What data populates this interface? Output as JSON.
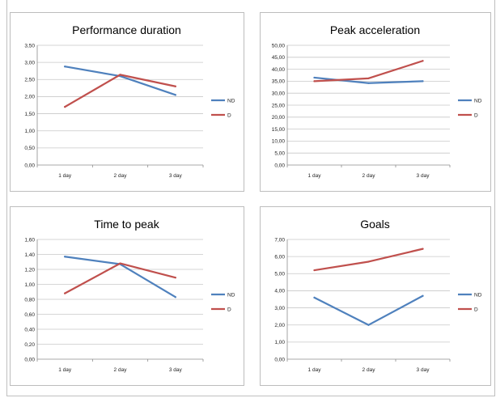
{
  "chart_data": [
    {
      "type": "line",
      "title": "Performance duration",
      "categories": [
        "1 day",
        "2 day",
        "3 day"
      ],
      "y_ticks": [
        "0,00",
        "0,50",
        "1,00",
        "1,50",
        "2,00",
        "2,50",
        "3,00",
        "3,50"
      ],
      "ylim": [
        0,
        3.5
      ],
      "legend_position": "right",
      "grid": true,
      "series": [
        {
          "name": "ND",
          "values": [
            2.88,
            2.6,
            2.05
          ],
          "color": "#4f81bd"
        },
        {
          "name": "D",
          "values": [
            1.7,
            2.64,
            2.3
          ],
          "color": "#c0504d"
        }
      ]
    },
    {
      "type": "line",
      "title": "Peak acceleration",
      "categories": [
        "1 day",
        "2 day",
        "3 day"
      ],
      "y_ticks": [
        "0,00",
        "5,00",
        "10,00",
        "15,00",
        "20,00",
        "25,00",
        "30,00",
        "35,00",
        "40,00",
        "45,00",
        "50,00"
      ],
      "ylim": [
        0,
        50
      ],
      "legend_position": "right",
      "grid": true,
      "series": [
        {
          "name": "ND",
          "values": [
            36.5,
            34.2,
            35.0
          ],
          "color": "#4f81bd"
        },
        {
          "name": "D",
          "values": [
            35.0,
            36.2,
            43.5
          ],
          "color": "#c0504d"
        }
      ]
    },
    {
      "type": "line",
      "title": "Time to peak",
      "categories": [
        "1 day",
        "2 day",
        "3 day"
      ],
      "y_ticks": [
        "0,00",
        "0,20",
        "0,40",
        "0,60",
        "0,80",
        "1,00",
        "1,20",
        "1,40",
        "1,60"
      ],
      "ylim": [
        0,
        1.6
      ],
      "legend_position": "right",
      "grid": true,
      "series": [
        {
          "name": "ND",
          "values": [
            1.37,
            1.27,
            0.83
          ],
          "color": "#4f81bd"
        },
        {
          "name": "D",
          "values": [
            0.88,
            1.28,
            1.09
          ],
          "color": "#c0504d"
        }
      ]
    },
    {
      "type": "line",
      "title": "Goals",
      "categories": [
        "1 day",
        "2 day",
        "3 day"
      ],
      "y_ticks": [
        "0,00",
        "1,00",
        "2,00",
        "3,00",
        "4,00",
        "5,00",
        "6,00",
        "7,00"
      ],
      "ylim": [
        0,
        7
      ],
      "legend_position": "right",
      "grid": true,
      "series": [
        {
          "name": "ND",
          "values": [
            3.6,
            2.0,
            3.7
          ],
          "color": "#4f81bd"
        },
        {
          "name": "D",
          "values": [
            5.2,
            5.7,
            6.45
          ],
          "color": "#c0504d"
        }
      ]
    }
  ]
}
